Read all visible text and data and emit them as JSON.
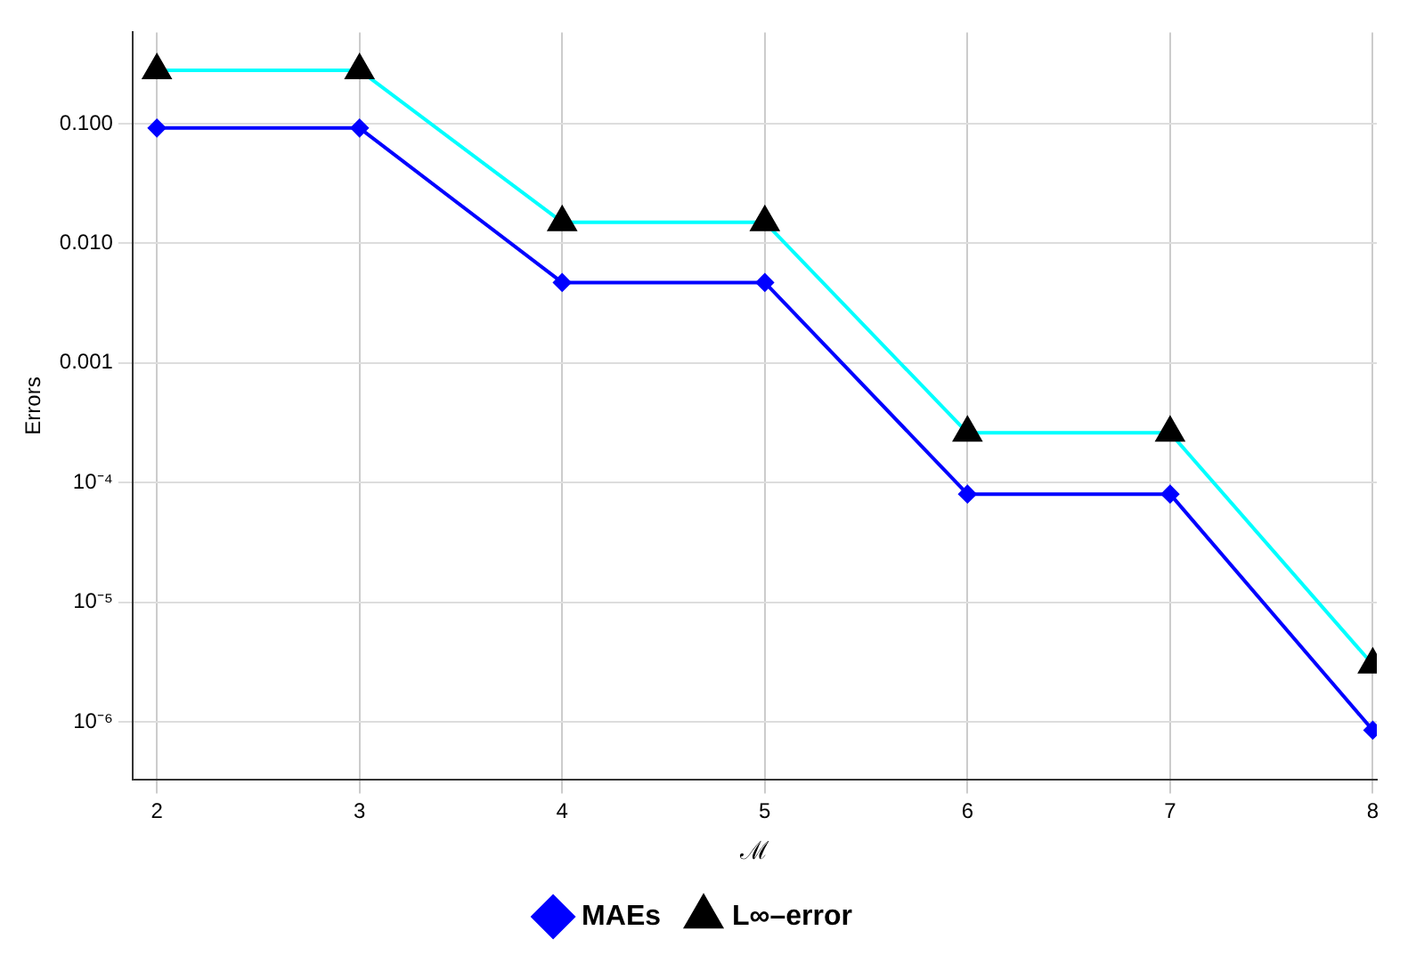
{
  "chart_data": {
    "type": "line",
    "xlabel": "ℳ",
    "ylabel": "Errors",
    "x": [
      2,
      3,
      4,
      5,
      6,
      7,
      8
    ],
    "series": [
      {
        "name": "MAEs",
        "color": "#0000ff",
        "marker": "diamond",
        "values": [
          0.092,
          0.092,
          0.0047,
          0.0047,
          8e-05,
          8e-05,
          8.5e-07
        ]
      },
      {
        "name": "L∞–error",
        "color": "#00ffff",
        "marker": "triangle",
        "values": [
          0.28,
          0.28,
          0.015,
          0.015,
          0.00026,
          0.00026,
          3e-06
        ]
      }
    ],
    "log": "y",
    "xlim": [
      1.88,
      8.02
    ],
    "ylim": [
      3.3e-07,
      0.58
    ],
    "xticks": [
      2,
      3,
      4,
      5,
      6,
      7,
      8
    ],
    "yticks": [
      {
        "value": 0.1,
        "label": "0.100"
      },
      {
        "value": 0.01,
        "label": "0.010"
      },
      {
        "value": 0.001,
        "label": "0.001"
      },
      {
        "value": 0.0001,
        "label": "10⁻⁴"
      },
      {
        "value": 1e-05,
        "label": "10⁻⁵"
      },
      {
        "value": 1e-06,
        "label": "10⁻⁶"
      }
    ],
    "grid": true,
    "legend": "bottom"
  }
}
